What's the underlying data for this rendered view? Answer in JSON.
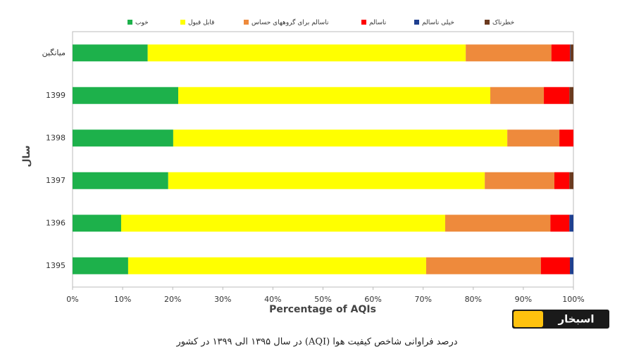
{
  "chart_data": {
    "type": "stacked-barh",
    "categories": [
      "میانگین",
      "1399",
      "1398",
      "1397",
      "1396",
      "1395"
    ],
    "series": [
      {
        "name": "خوب",
        "color": "#1db14b",
        "values": [
          15.0,
          21.1,
          20.1,
          19.1,
          9.7,
          11.1
        ]
      },
      {
        "name": "قابل قبول",
        "color": "#ffff00",
        "values": [
          63.5,
          62.3,
          66.7,
          63.2,
          64.7,
          59.5
        ]
      },
      {
        "name": "ناسالم برای گروههای حساس",
        "color": "#ee8a3c",
        "values": [
          17.1,
          10.7,
          10.4,
          13.9,
          21.0,
          22.9
        ]
      },
      {
        "name": "ناسالم",
        "color": "#ff0000",
        "values": [
          3.7,
          5.1,
          2.8,
          3.0,
          3.8,
          5.8
        ]
      },
      {
        "name": "خیلی ناسالم",
        "color": "#1f3f8f",
        "values": [
          0.1,
          0,
          0,
          0,
          0.8,
          0.7
        ]
      },
      {
        "name": "خطرناک",
        "color": "#6b3a1f",
        "values": [
          0.6,
          0.8,
          0,
          0.8,
          0,
          0
        ]
      }
    ],
    "xlim": [
      0,
      100
    ],
    "xticks": [
      {
        "value": 0,
        "label": "0%"
      },
      {
        "value": 10,
        "label": "10%"
      },
      {
        "value": 20,
        "label": "20%"
      },
      {
        "value": 30,
        "label": "30%"
      },
      {
        "value": 40,
        "label": "40%"
      },
      {
        "value": 50,
        "label": "50%"
      },
      {
        "value": 60,
        "label": "60%"
      },
      {
        "value": 70,
        "label": "70%"
      },
      {
        "value": 80,
        "label": "80%"
      },
      {
        "value": 90,
        "label": "90%"
      },
      {
        "value": 100,
        "label": "100%"
      }
    ],
    "xlabel": "Percentage of AQIs",
    "ylabel": "سال",
    "grid": false
  },
  "caption": "درصد فراوانی شاخص کیفیت هوا (AQI) در سال ۱۳۹۵ الی ۱۳۹۹ در کشور",
  "logo": "اسبخار"
}
